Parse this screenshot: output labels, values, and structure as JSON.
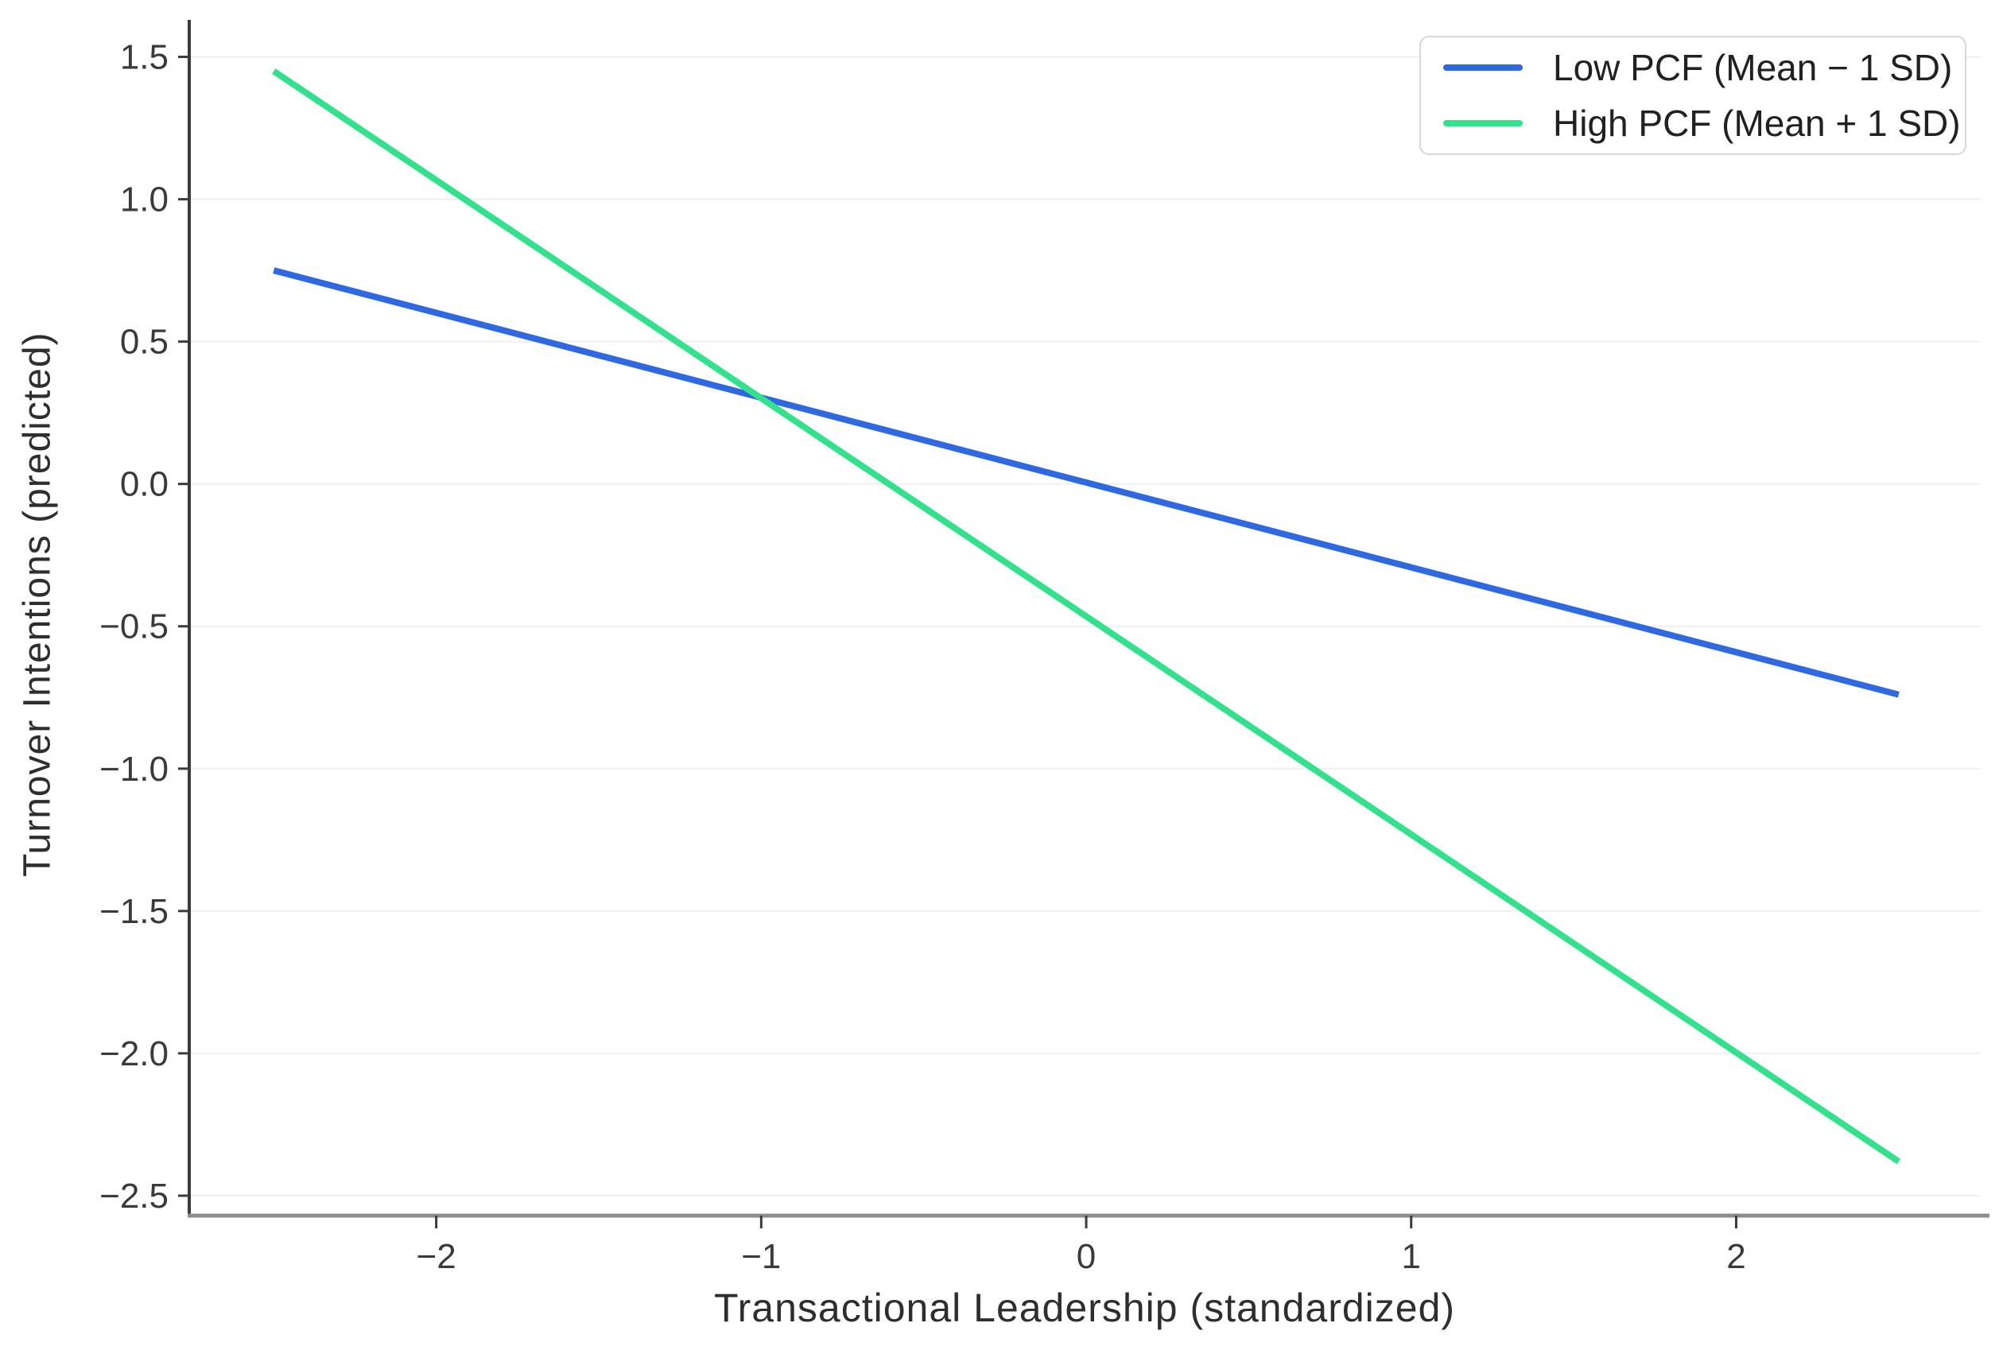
{
  "chart_data": {
    "type": "line",
    "title": "",
    "xlabel": "Transactional Leadership (standardized)",
    "ylabel": "Turnover Intentions (predicted)",
    "xlim": [
      -2.76,
      2.75
    ],
    "ylim": [
      -2.57,
      1.63
    ],
    "grid": "horizontal",
    "legend_position": "top-right",
    "xticks": [
      {
        "value": -2,
        "label": "−2"
      },
      {
        "value": -1,
        "label": "−1"
      },
      {
        "value": 0,
        "label": "0"
      },
      {
        "value": 1,
        "label": "1"
      },
      {
        "value": 2,
        "label": "2"
      }
    ],
    "yticks": [
      {
        "value": 1.5,
        "label": "1.5"
      },
      {
        "value": 1.0,
        "label": "1.0"
      },
      {
        "value": 0.5,
        "label": "0.5"
      },
      {
        "value": 0.0,
        "label": "0.0"
      },
      {
        "value": -0.5,
        "label": "−0.5"
      },
      {
        "value": -1.0,
        "label": "−1.0"
      },
      {
        "value": -1.5,
        "label": "−1.5"
      },
      {
        "value": -2.0,
        "label": "−2.0"
      },
      {
        "value": -2.5,
        "label": "−2.5"
      }
    ],
    "series": [
      {
        "name": "Low PCF (Mean − 1 SD)",
        "color": "#2f69e1",
        "x": [
          -2.5,
          2.5
        ],
        "y": [
          0.75,
          -0.74
        ]
      },
      {
        "name": "High PCF (Mean + 1 SD)",
        "color": "#33e18c",
        "x": [
          -2.5,
          2.5
        ],
        "y": [
          1.45,
          -2.38
        ]
      }
    ],
    "colors": {
      "background": "#ffffff",
      "grid": "#efefef",
      "spine_left": "#3b3b3b",
      "spine_bottom": "#8d8d8d",
      "tick": "#3b3b3b",
      "tick_label": "#3a3a3a",
      "axis_label": "#2e2e2e",
      "legend_border": "#d7d7d7",
      "legend_text": "#212121"
    }
  }
}
